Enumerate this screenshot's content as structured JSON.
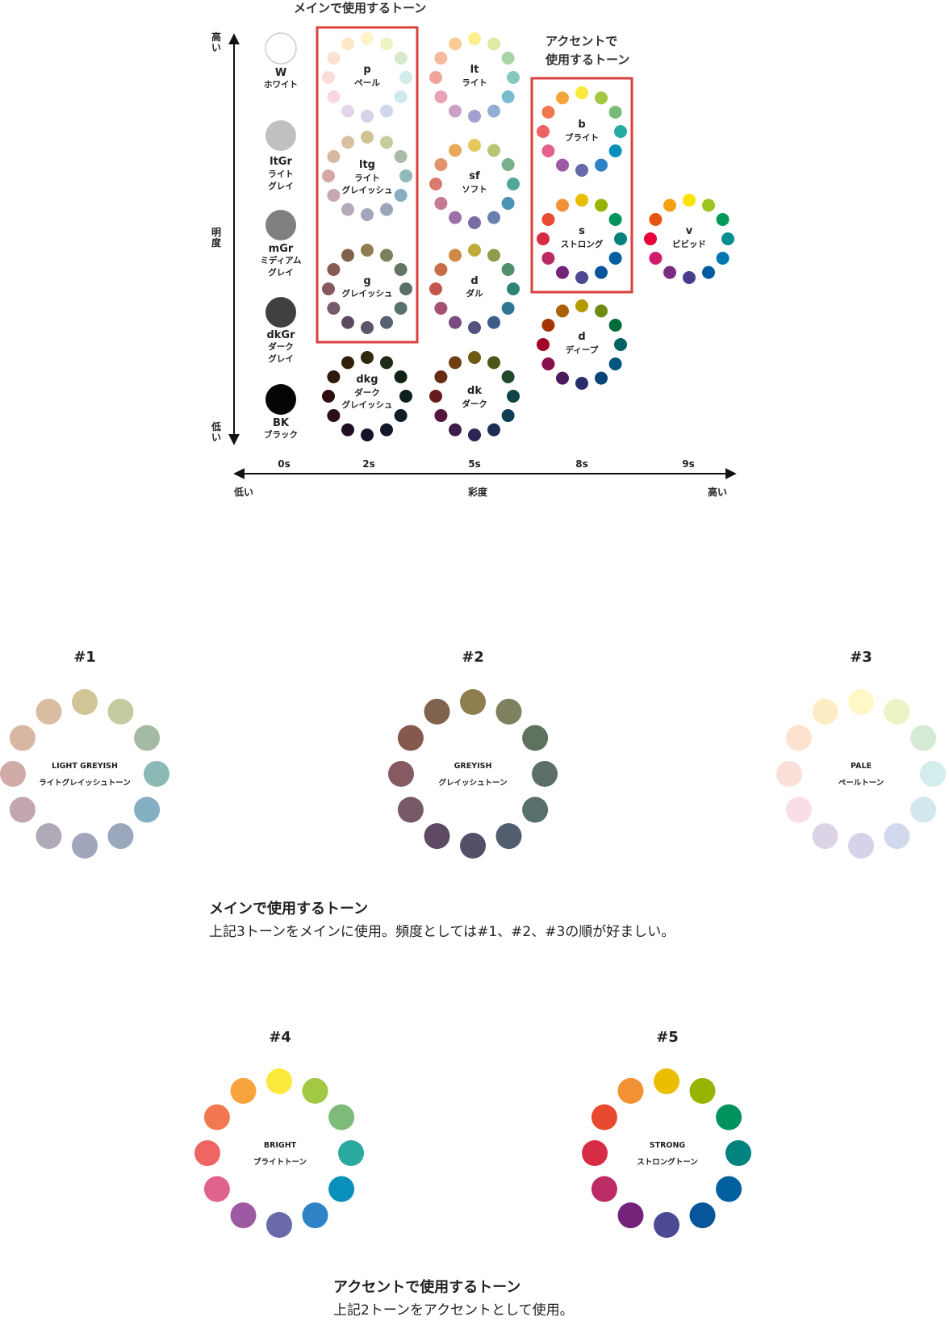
{
  "chart": {
    "title_main": "メインで使用するトーン",
    "title_accent_line1": "アクセントで",
    "title_accent_line2": "使用するトーン",
    "y_axis": {
      "high": "高",
      "high2": "い",
      "label1": "明",
      "label2": "度",
      "low": "低",
      "low2": "い"
    },
    "x_axis": {
      "ticks": [
        "0s",
        "2s",
        "5s",
        "8s",
        "9s"
      ],
      "low": "低い",
      "label": "彩度",
      "high": "高い"
    },
    "achromatic": [
      {
        "code": "W",
        "name1": "ホワイト",
        "name2": "",
        "color": "#ffffff"
      },
      {
        "code": "ltGr",
        "name1": "ライト",
        "name2": "グレイ",
        "color": "#c0c0c0"
      },
      {
        "code": "mGr",
        "name1": "ミディアム",
        "name2": "グレイ",
        "color": "#808080"
      },
      {
        "code": "dkGr",
        "name1": "ダーク",
        "name2": "グレイ",
        "color": "#404040"
      },
      {
        "code": "BK",
        "name1": "ブラック",
        "name2": "",
        "color": "#050505"
      }
    ],
    "tones": [
      {
        "code": "p",
        "name1": "ペール",
        "name2": "",
        "colors": [
          "#fdf3c6",
          "#eef3c4",
          "#d7eacf",
          "#d2ecea",
          "#cfe8ee",
          "#cfd7eb",
          "#d6d2ea",
          "#e4d6ea",
          "#f9d6e3",
          "#fadcd8",
          "#fde3cf",
          "#fde9c5"
        ]
      },
      {
        "code": "lt",
        "name1": "ライト",
        "name2": "",
        "colors": [
          "#fcef8c",
          "#dfeaa4",
          "#a8d5a7",
          "#86c8bf",
          "#79bcd2",
          "#93aed4",
          "#a2a0cf",
          "#c8a0c8",
          "#e9a3b5",
          "#eea49a",
          "#f5b99b",
          "#f8cb92"
        ]
      },
      {
        "code": "ltg",
        "name1": "ライト",
        "name2": "グレイッシュ",
        "colors": [
          "#cec391",
          "#c6cc9c",
          "#a9bba4",
          "#8fbab8",
          "#85afc0",
          "#9aa7bb",
          "#a3a5b9",
          "#b4aab9",
          "#c7a8b0",
          "#d4a9a3",
          "#d7b7a2",
          "#d9c0a0"
        ]
      },
      {
        "code": "sf",
        "name1": "ソフト",
        "name2": "",
        "colors": [
          "#e6c85a",
          "#b6c476",
          "#77b08a",
          "#4ea79b",
          "#4c94b3",
          "#6780ad",
          "#7a6da4",
          "#9c6fa5",
          "#c57a91",
          "#db7b70",
          "#e4936c",
          "#eaaa5c"
        ]
      },
      {
        "code": "g",
        "name1": "グレイッシュ",
        "name2": "",
        "colors": [
          "#8e7e50",
          "#7e7f5c",
          "#627561",
          "#5a6f67",
          "#5a706c",
          "#556070",
          "#5d5568",
          "#5b4b60",
          "#755a69",
          "#855a5f",
          "#875b4f",
          "#81634d"
        ]
      },
      {
        "code": "d",
        "name1": "ダル",
        "name2": "",
        "colors": [
          "#c0aa3a",
          "#8d9b4d",
          "#4e8f6c",
          "#2f8277",
          "#2e7694",
          "#3c5d8a",
          "#54537f",
          "#784a80",
          "#a55073",
          "#c2584d",
          "#c86d49",
          "#cf8a43"
        ]
      },
      {
        "code": "dkg",
        "name1": "ダーク",
        "name2": "グレイッシュ",
        "colors": [
          "#2e2a0f",
          "#1f2a16",
          "#102416",
          "#0e1f1e",
          "#0f1e24",
          "#121626",
          "#15132a",
          "#1e1022",
          "#2a0f1b",
          "#2e0f0f",
          "#2e170b",
          "#2f200c"
        ]
      },
      {
        "code": "dk",
        "name1": "ダーク",
        "name2": "",
        "colors": [
          "#6b5a10",
          "#4f5518",
          "#1e4a2b",
          "#0f4546",
          "#0f3e52",
          "#1b2d55",
          "#2a2554",
          "#3f1d4b",
          "#57173d",
          "#661c1f",
          "#6a2b14",
          "#6c3e12"
        ]
      },
      {
        "code": "b",
        "name1": "ブライト",
        "name2": "",
        "colors": [
          "#fbea3b",
          "#a2c93f",
          "#77bb78",
          "#27aaa0",
          "#078fbd",
          "#2e82c7",
          "#6869ad",
          "#9d5aa3",
          "#e2628d",
          "#ee6261",
          "#f1774f",
          "#f4a43f"
        ]
      },
      {
        "code": "s",
        "name1": "ストロング",
        "name2": "",
        "colors": [
          "#e9bd00",
          "#98b400",
          "#00935d",
          "#00837f",
          "#005f9e",
          "#07569b",
          "#4c4a93",
          "#74247b",
          "#bb2a64",
          "#d62c45",
          "#e84a34",
          "#f39135"
        ]
      },
      {
        "code": "v",
        "name1": "ビビッド",
        "name2": "",
        "colors": [
          "#fbe400",
          "#9dc31d",
          "#009a5b",
          "#008f8e",
          "#0075b2",
          "#005aa3",
          "#483d8b",
          "#7c2b83",
          "#d11c6c",
          "#e7003a",
          "#e95412",
          "#f4a012"
        ]
      },
      {
        "code": "d",
        "name1": "ディープ",
        "name2": "",
        "colors": [
          "#b29a00",
          "#6e8a12",
          "#006b3a",
          "#006263",
          "#00567e",
          "#08437a",
          "#2a2d6b",
          "#4a1c5e",
          "#870f4c",
          "#a1002a",
          "#a33406",
          "#a7620a"
        ]
      }
    ]
  },
  "detail": {
    "wheels": [
      {
        "number": "#1",
        "label_en": "LIGHT GREYISH",
        "label_jp": "ライトグレイッシュトーン",
        "colors": [
          "#d0c597",
          "#c4cc9f",
          "#a5baa4",
          "#8cb9b6",
          "#84aec1",
          "#9aa7bd",
          "#a1a6bd",
          "#b0aab8",
          "#c2a6ad",
          "#d1aba8",
          "#d7b6a4",
          "#d9bda3"
        ]
      },
      {
        "number": "#2",
        "label_en": "GREYISH",
        "label_jp": "グレイッシュトーン",
        "colors": [
          "#8e7e50",
          "#7e805e",
          "#5f7260",
          "#5b6f68",
          "#58706b",
          "#525d6e",
          "#555069",
          "#5e4b63",
          "#765a68",
          "#865a60",
          "#86594f",
          "#80634c"
        ]
      },
      {
        "number": "#3",
        "label_en": "PALE",
        "label_jp": "ペールトーン",
        "colors": [
          "#fff7c8",
          "#eef3c6",
          "#d5ead4",
          "#d3ecec",
          "#d0e8ee",
          "#d3d9ec",
          "#d5d3ea",
          "#ddd3e6",
          "#f9dde8",
          "#fbdfd9",
          "#fde3cf",
          "#feecc5"
        ]
      },
      {
        "number": "#4",
        "label_en": "BRIGHT",
        "label_jp": "ブライトトーン",
        "colors": [
          "#fbe93c",
          "#a3c944",
          "#7ebb79",
          "#2aaa9e",
          "#0a90bd",
          "#2e83c7",
          "#6a6aab",
          "#9b5aa1",
          "#e0638e",
          "#ee6564",
          "#f2794f",
          "#f7a43f"
        ]
      },
      {
        "number": "#5",
        "label_en": "STRONG",
        "label_jp": "ストロングトーン",
        "colors": [
          "#ebbe00",
          "#99b400",
          "#00935d",
          "#00837f",
          "#005f9f",
          "#07569c",
          "#4d4a93",
          "#73247a",
          "#bb2b64",
          "#d72c46",
          "#e9492f",
          "#f39235"
        ]
      }
    ]
  },
  "text": {
    "main_heading": "メインで使用するトーン",
    "main_body": "上記3トーンをメインに使用。頻度としては#1、#2、#3の順が好ましい。",
    "accent_heading": "アクセントで使用するトーン",
    "accent_body": "上記2トーンをアクセントとして使用。"
  },
  "colors": {
    "highlight_border": "#d9403e",
    "axis": "#111111"
  }
}
